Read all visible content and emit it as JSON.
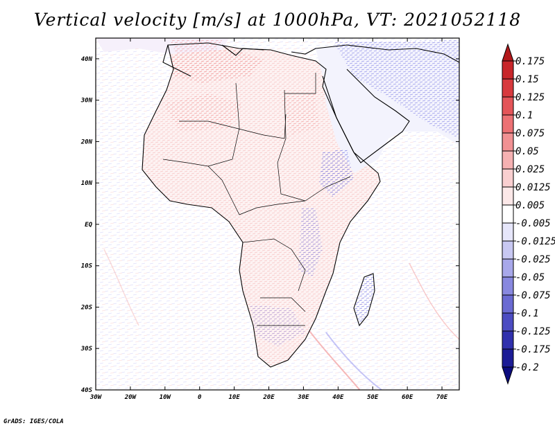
{
  "title": "Vertical velocity [m/s] at 1000hPa, VT: 2021052118",
  "credit": "GrADS: IGES/COLA",
  "map": {
    "region": "Africa",
    "field": "Vertical velocity",
    "units": "m/s",
    "level": "1000hPa",
    "valid_time": "2021052118",
    "lon_range": [
      -30,
      75
    ],
    "lat_range": [
      -40,
      45
    ],
    "lon_ticks": [
      "30W",
      "20W",
      "10W",
      "0",
      "10E",
      "20E",
      "30E",
      "40E",
      "50E",
      "60E",
      "70E"
    ],
    "lat_ticks": [
      "40S",
      "30S",
      "20S",
      "10S",
      "EQ",
      "10N",
      "20N",
      "30N",
      "40N"
    ]
  },
  "colorbar": {
    "labels": [
      "0.175",
      "0.15",
      "0.125",
      "0.1",
      "0.075",
      "0.05",
      "0.025",
      "0.0125",
      "0.005",
      "-0.005",
      "-0.0125",
      "-0.025",
      "-0.05",
      "-0.075",
      "-0.1",
      "-0.125",
      "-0.175",
      "-0.2"
    ],
    "colors": [
      "#b2181b",
      "#c8262a",
      "#d83a3e",
      "#e45559",
      "#ec7174",
      "#f19193",
      "#f5b1b2",
      "#f9cfd0",
      "#fce8e8",
      "#ffffff",
      "#e6e6fa",
      "#c8c8f2",
      "#a8a8ea",
      "#8888df",
      "#6a6ad2",
      "#4c4cc2",
      "#3030ad",
      "#1c1c96",
      "#0c0c7e"
    ]
  }
}
